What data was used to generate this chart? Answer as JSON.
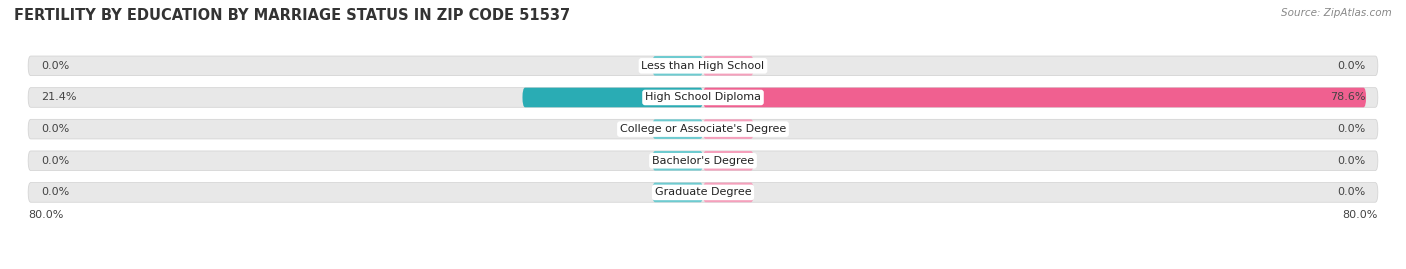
{
  "title": "FERTILITY BY EDUCATION BY MARRIAGE STATUS IN ZIP CODE 51537",
  "source": "Source: ZipAtlas.com",
  "categories": [
    "Less than High School",
    "High School Diploma",
    "College or Associate's Degree",
    "Bachelor's Degree",
    "Graduate Degree"
  ],
  "married_values": [
    0.0,
    21.4,
    0.0,
    0.0,
    0.0
  ],
  "unmarried_values": [
    0.0,
    78.6,
    0.0,
    0.0,
    0.0
  ],
  "married_color_light": "#6ecbd0",
  "married_color_dark": "#2aacb4",
  "unmarried_color_light": "#f5a0bc",
  "unmarried_color_dark": "#f06090",
  "bar_bg_color": "#e8e8e8",
  "bar_border_color": "#d0d0d0",
  "axis_limit": 80.0,
  "stub_size": 6.0,
  "bar_height": 0.62,
  "background_color": "#ffffff",
  "title_fontsize": 10.5,
  "label_fontsize": 8.0,
  "category_fontsize": 8.0,
  "legend_fontsize": 8.5,
  "source_fontsize": 7.5
}
